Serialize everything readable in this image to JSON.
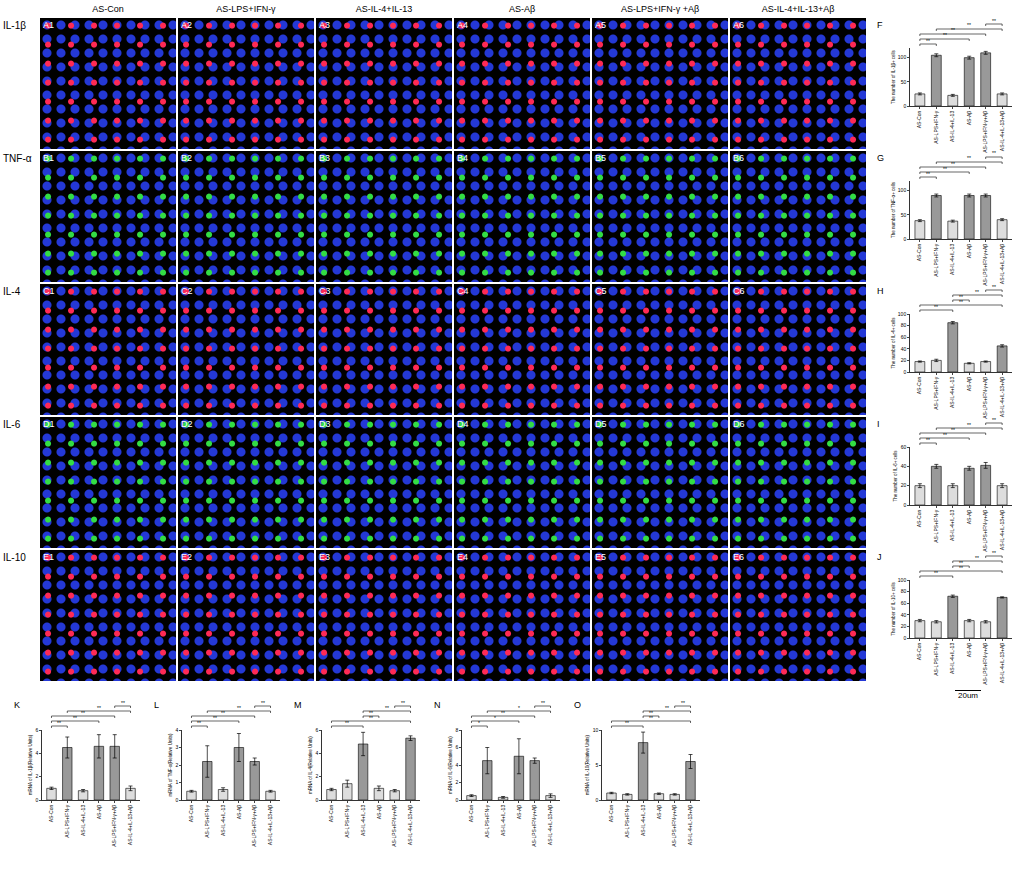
{
  "image_grid": {
    "columns": [
      "AS-Con",
      "AS-LPS+IFN-γ",
      "AS-IL-4+IL-13",
      "AS-Aβ",
      "AS-LPS+IFN-γ +Aβ",
      "AS-IL-4+IL-13+Aβ"
    ],
    "rows": [
      {
        "label": "IL-1β",
        "color": "#ff2a55",
        "panels": [
          "A1",
          "A2",
          "A3",
          "A4",
          "A5",
          "A6"
        ]
      },
      {
        "label": "TNF-α",
        "color": "#33dd44",
        "panels": [
          "B1",
          "B2",
          "B3",
          "B4",
          "B5",
          "B6"
        ]
      },
      {
        "label": "IL-4",
        "color": "#ff2a55",
        "panels": [
          "C1",
          "C2",
          "C3",
          "C4",
          "C5",
          "C6"
        ]
      },
      {
        "label": "IL-6",
        "color": "#33dd44",
        "panels": [
          "D1",
          "D2",
          "D3",
          "D4",
          "D5",
          "D6"
        ]
      },
      {
        "label": "IL-10",
        "color": "#ff2a55",
        "panels": [
          "E1",
          "E2",
          "E3",
          "E4",
          "E5",
          "E6"
        ]
      }
    ],
    "scale_bar": "20um"
  },
  "chart_data": [
    {
      "type": "bar",
      "title": "F",
      "y_label": "The number of IL-1β+ cells",
      "categories": [
        "AS-Con",
        "AS-LPS+IFN-γ",
        "AS-IL-4+IL-13",
        "AS-Aβ",
        "AS-LPS+IFN-γ+Aβ",
        "AS-IL-4+IL-13+Aβ"
      ],
      "values": [
        25,
        105,
        22,
        100,
        110,
        25
      ],
      "error": [
        2,
        3,
        2,
        3,
        3,
        2
      ],
      "colors": [
        "#dddddd",
        "#999999",
        "#dddddd",
        "#999999",
        "#999999",
        "#dddddd"
      ],
      "ylim": [
        0,
        120
      ],
      "yticks": [
        0,
        50,
        100
      ],
      "brackets": [
        {
          "from": 0,
          "to": 1,
          "label": "**"
        },
        {
          "from": 0,
          "to": 3,
          "label": "**"
        },
        {
          "from": 0,
          "to": 4,
          "label": "**"
        },
        {
          "from": 1,
          "to": 5,
          "label": "**"
        },
        {
          "from": 4,
          "to": 5,
          "label": "**"
        }
      ]
    },
    {
      "type": "bar",
      "title": "G",
      "y_label": "The number of TNF-α+ cells",
      "categories": [
        "AS-Con",
        "AS-LPS+IFN-γ",
        "AS-IL-4+IL-13",
        "AS-Aβ",
        "AS-LPS+IFN-γ+Aβ",
        "AS-IL-4+IL-13+Aβ"
      ],
      "values": [
        38,
        90,
        37,
        90,
        90,
        40
      ],
      "error": [
        2,
        3,
        2,
        3,
        3,
        2
      ],
      "colors": [
        "#dddddd",
        "#999999",
        "#dddddd",
        "#999999",
        "#999999",
        "#dddddd"
      ],
      "ylim": [
        0,
        120
      ],
      "yticks": [
        0,
        50,
        100
      ],
      "brackets": [
        {
          "from": 0,
          "to": 1,
          "label": "**"
        },
        {
          "from": 0,
          "to": 3,
          "label": "**"
        },
        {
          "from": 0,
          "to": 4,
          "label": "**"
        },
        {
          "from": 1,
          "to": 5,
          "label": "**"
        },
        {
          "from": 4,
          "to": 5,
          "label": "**"
        }
      ]
    },
    {
      "type": "bar",
      "title": "H",
      "y_label": "The number of IL-4+ cells",
      "categories": [
        "AS-Con",
        "AS-LPS+IFN-γ",
        "AS-IL-4+IL-13",
        "AS-Aβ",
        "AS-LPS+IFN-γ+Aβ",
        "AS-IL-4+IL-13+Aβ"
      ],
      "values": [
        18,
        20,
        85,
        15,
        18,
        45
      ],
      "error": [
        1,
        2,
        2,
        1,
        1,
        2
      ],
      "colors": [
        "#dddddd",
        "#dddddd",
        "#999999",
        "#dddddd",
        "#dddddd",
        "#999999"
      ],
      "ylim": [
        0,
        100
      ],
      "yticks": [
        0,
        20,
        40,
        60,
        80,
        100
      ],
      "brackets": [
        {
          "from": 0,
          "to": 2,
          "label": "**"
        },
        {
          "from": 0,
          "to": 5,
          "label": "**"
        },
        {
          "from": 2,
          "to": 3,
          "label": "**"
        },
        {
          "from": 2,
          "to": 5,
          "label": "**"
        },
        {
          "from": 4,
          "to": 5,
          "label": "**"
        }
      ]
    },
    {
      "type": "bar",
      "title": "I",
      "y_label": "The number of IL-6+ cells",
      "categories": [
        "AS-Con",
        "AS-LPS+IFN-γ",
        "AS-IL-4+IL-13",
        "AS-Aβ",
        "AS-LPS+IFN-γ+Aβ",
        "AS-IL-4+IL-13+Aβ"
      ],
      "values": [
        20,
        40,
        20,
        38,
        41,
        20
      ],
      "error": [
        2,
        2,
        2,
        2,
        3,
        2
      ],
      "colors": [
        "#dddddd",
        "#999999",
        "#dddddd",
        "#999999",
        "#999999",
        "#dddddd"
      ],
      "ylim": [
        0,
        60
      ],
      "yticks": [
        0,
        20,
        40,
        60
      ],
      "brackets": [
        {
          "from": 0,
          "to": 1,
          "label": "**"
        },
        {
          "from": 0,
          "to": 3,
          "label": "**"
        },
        {
          "from": 0,
          "to": 4,
          "label": "**"
        },
        {
          "from": 1,
          "to": 5,
          "label": "**"
        },
        {
          "from": 4,
          "to": 5,
          "label": "**"
        }
      ]
    },
    {
      "type": "bar",
      "title": "J",
      "y_label": "The number of IL-10+ cells",
      "categories": [
        "AS-Con",
        "AS-LPS+IFN-γ",
        "AS-IL-4+IL-13",
        "AS-Aβ",
        "AS-LPS+IFN-γ+Aβ",
        "AS-IL-4+IL-13+Aβ"
      ],
      "values": [
        30,
        28,
        72,
        30,
        28,
        70
      ],
      "error": [
        2,
        2,
        2,
        2,
        2,
        1
      ],
      "colors": [
        "#dddddd",
        "#dddddd",
        "#999999",
        "#dddddd",
        "#dddddd",
        "#999999"
      ],
      "ylim": [
        0,
        100
      ],
      "yticks": [
        0,
        20,
        40,
        60,
        80,
        100
      ],
      "brackets": [
        {
          "from": 0,
          "to": 2,
          "label": "**"
        },
        {
          "from": 0,
          "to": 5,
          "label": "**"
        },
        {
          "from": 2,
          "to": 3,
          "label": "**"
        },
        {
          "from": 2,
          "to": 5,
          "label": "**"
        },
        {
          "from": 4,
          "to": 5,
          "label": "**"
        }
      ]
    },
    {
      "type": "bar",
      "title": "K",
      "y_label": "mRNA of IL-1β(Relative Units)",
      "categories": [
        "AS-Con",
        "AS-LPS+IFN-γ",
        "AS-IL-4+IL-13",
        "AS-Aβ",
        "AS-LPS+IFN-γ+Aβ",
        "AS-IL-4+IL-13+Aβ"
      ],
      "values": [
        1,
        4.5,
        0.8,
        4.6,
        4.6,
        1
      ],
      "error": [
        0.1,
        0.9,
        0.1,
        1,
        1,
        0.2
      ],
      "colors": [
        "#dddddd",
        "#999999",
        "#dddddd",
        "#999999",
        "#999999",
        "#dddddd"
      ],
      "ylim": [
        0,
        6
      ],
      "yticks": [
        0,
        2,
        4,
        6
      ],
      "brackets": [
        {
          "from": 0,
          "to": 1,
          "label": "**"
        },
        {
          "from": 0,
          "to": 3,
          "label": "**"
        },
        {
          "from": 0,
          "to": 4,
          "label": "**"
        },
        {
          "from": 1,
          "to": 5,
          "label": "**"
        },
        {
          "from": 4,
          "to": 5,
          "label": "**"
        }
      ]
    },
    {
      "type": "bar",
      "title": "L",
      "y_label": "mRNA of TNF-α(Relative Units)",
      "categories": [
        "AS-Con",
        "AS-LPS+IFN-γ",
        "AS-IL-4+IL-13",
        "AS-Aβ",
        "AS-LPS+IFN-γ+Aβ",
        "AS-IL-4+IL-13+Aβ"
      ],
      "values": [
        0.5,
        2.2,
        0.6,
        3,
        2.2,
        0.5
      ],
      "error": [
        0.05,
        0.9,
        0.1,
        0.8,
        0.2,
        0.05
      ],
      "colors": [
        "#dddddd",
        "#999999",
        "#dddddd",
        "#999999",
        "#999999",
        "#dddddd"
      ],
      "ylim": [
        0,
        4
      ],
      "yticks": [
        0,
        1,
        2,
        3,
        4
      ],
      "brackets": [
        {
          "from": 0,
          "to": 1,
          "label": "**"
        },
        {
          "from": 0,
          "to": 3,
          "label": "**"
        },
        {
          "from": 0,
          "to": 4,
          "label": "**"
        },
        {
          "from": 1,
          "to": 5,
          "label": "**"
        },
        {
          "from": 4,
          "to": 5,
          "label": "**"
        }
      ]
    },
    {
      "type": "bar",
      "title": "M",
      "y_label": "mRNA of IL-4(Relative Units)",
      "categories": [
        "AS-Con",
        "AS-LPS+IFN-γ",
        "AS-IL-4+IL-13",
        "AS-Aβ",
        "AS-LPS+IFN-γ+Aβ",
        "AS-IL-4+IL-13+Aβ"
      ],
      "values": [
        0.9,
        1.4,
        4.8,
        1,
        0.8,
        5.3
      ],
      "error": [
        0.1,
        0.3,
        1,
        0.2,
        0.1,
        0.2
      ],
      "colors": [
        "#dddddd",
        "#dddddd",
        "#999999",
        "#dddddd",
        "#dddddd",
        "#999999"
      ],
      "ylim": [
        0,
        6
      ],
      "yticks": [
        0,
        2,
        4,
        6
      ],
      "brackets": [
        {
          "from": 0,
          "to": 2,
          "label": "**"
        },
        {
          "from": 0,
          "to": 5,
          "label": "**"
        },
        {
          "from": 2,
          "to": 3,
          "label": "**"
        },
        {
          "from": 2,
          "to": 5,
          "label": "**"
        },
        {
          "from": 4,
          "to": 5,
          "label": "**"
        }
      ]
    },
    {
      "type": "bar",
      "title": "N",
      "y_label": "mRNA of IL-6(Relative Units)",
      "categories": [
        "AS-Con",
        "AS-LPS+IFN-γ",
        "AS-IL-4+IL-13",
        "AS-Aβ",
        "AS-LPS+IFN-γ+Aβ",
        "AS-IL-4+IL-13+Aβ"
      ],
      "values": [
        0.5,
        4.5,
        0.3,
        5,
        4.5,
        0.5
      ],
      "error": [
        0.1,
        1.5,
        0.1,
        2,
        0.3,
        0.2
      ],
      "colors": [
        "#dddddd",
        "#999999",
        "#dddddd",
        "#999999",
        "#999999",
        "#dddddd"
      ],
      "ylim": [
        0,
        8
      ],
      "yticks": [
        0,
        2,
        4,
        6,
        8
      ],
      "brackets": [
        {
          "from": 0,
          "to": 1,
          "label": "*"
        },
        {
          "from": 0,
          "to": 3,
          "label": "*"
        },
        {
          "from": 0,
          "to": 4,
          "label": "**"
        },
        {
          "from": 1,
          "to": 5,
          "label": "*"
        },
        {
          "from": 4,
          "to": 5,
          "label": "**"
        }
      ]
    },
    {
      "type": "bar",
      "title": "O",
      "y_label": "mRNA of IL-10(Relative Units)",
      "categories": [
        "AS-Con",
        "AS-LPS+IFN-γ",
        "AS-IL-4+IL-13",
        "AS-Aβ",
        "AS-LPS+IFN-γ+Aβ",
        "AS-IL-4+IL-13+Aβ"
      ],
      "values": [
        1,
        0.8,
        8.2,
        0.9,
        0.8,
        5.5
      ],
      "error": [
        0.1,
        0.1,
        1.5,
        0.1,
        0.1,
        1
      ],
      "colors": [
        "#dddddd",
        "#dddddd",
        "#999999",
        "#dddddd",
        "#dddddd",
        "#999999"
      ],
      "ylim": [
        0,
        10
      ],
      "yticks": [
        0,
        5,
        10
      ],
      "brackets": [
        {
          "from": 0,
          "to": 2,
          "label": "**"
        },
        {
          "from": 0,
          "to": 5,
          "label": "**"
        },
        {
          "from": 2,
          "to": 3,
          "label": "**"
        },
        {
          "from": 2,
          "to": 5,
          "label": "**"
        },
        {
          "from": 4,
          "to": 5,
          "label": "**"
        }
      ]
    }
  ]
}
